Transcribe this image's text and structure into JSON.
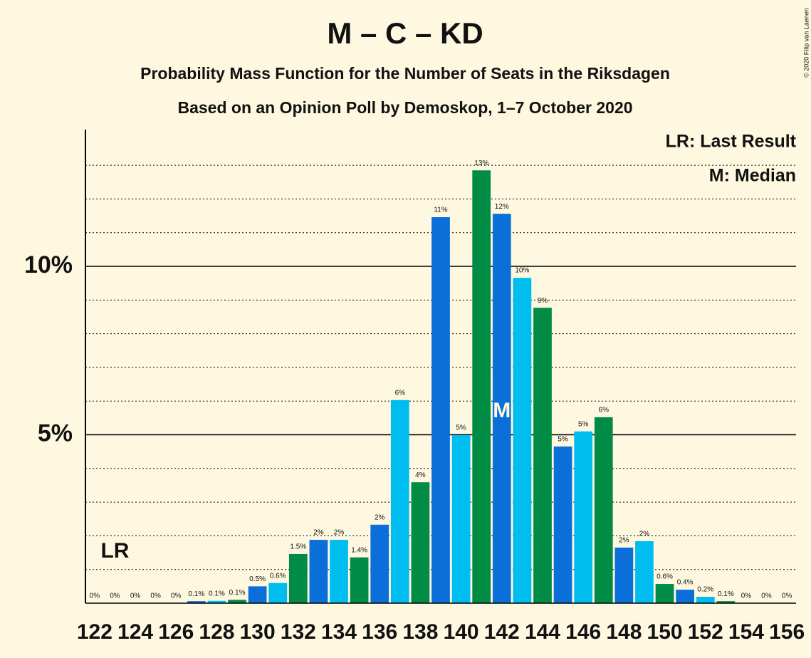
{
  "chart_data": {
    "type": "bar",
    "title": "M – C – KD",
    "subtitle": "Probability Mass Function for the Number of Seats in the Riksdagen",
    "subtitle2": "Based on an Opinion Poll by Demoskop, 1–7 October 2020",
    "copyright": "© 2020 Filip van Laenen",
    "x": [
      122,
      123,
      124,
      125,
      126,
      127,
      128,
      129,
      130,
      131,
      132,
      133,
      134,
      135,
      136,
      137,
      138,
      139,
      140,
      141,
      142,
      143,
      144,
      145,
      146,
      147,
      148,
      149,
      150,
      151,
      152,
      153,
      154,
      155,
      156
    ],
    "values": [
      0,
      0,
      0,
      0,
      0,
      0.06,
      0.07,
      0.1,
      0.5,
      0.6,
      1.46,
      1.88,
      1.88,
      1.36,
      2.33,
      6.03,
      3.59,
      11.46,
      4.99,
      12.85,
      11.56,
      9.66,
      8.77,
      4.65,
      5.1,
      5.52,
      1.65,
      1.84,
      0.57,
      0.4,
      0.19,
      0.06,
      0,
      0,
      0
    ],
    "value_labels": [
      "0%",
      "0%",
      "0%",
      "0%",
      "0%",
      "0.1%",
      "0.1%",
      "0.1%",
      "0.5%",
      "0.6%",
      "1.5%",
      "2%",
      "2%",
      "1.4%",
      "2%",
      "6%",
      "4%",
      "11%",
      "5%",
      "13%",
      "12%",
      "10%",
      "9%",
      "5%",
      "5%",
      "6%",
      "2%",
      "2%",
      "0.6%",
      "0.4%",
      "0.2%",
      "0.1%",
      "0%",
      "0%",
      "0%"
    ],
    "colors": [
      "#00bdf0",
      "#008c45",
      "#0a6fd8",
      "#00bdf0",
      "#008c45",
      "#0a6fd8",
      "#00bdf0",
      "#008c45",
      "#0a6fd8",
      "#00bdf0",
      "#008c45",
      "#0a6fd8",
      "#00bdf0",
      "#008c45",
      "#0a6fd8",
      "#00bdf0",
      "#008c45",
      "#0a6fd8",
      "#00bdf0",
      "#008c45",
      "#0a6fd8",
      "#00bdf0",
      "#008c45",
      "#0a6fd8",
      "#00bdf0",
      "#008c45",
      "#0a6fd8",
      "#00bdf0",
      "#008c45",
      "#0a6fd8",
      "#00bdf0",
      "#008c45",
      "#0a6fd8",
      "#00bdf0",
      "#008c45"
    ],
    "xlim": [
      121.55,
      156.45
    ],
    "xticks": [
      122,
      124,
      126,
      128,
      130,
      132,
      134,
      136,
      138,
      140,
      142,
      144,
      146,
      148,
      150,
      152,
      154,
      156
    ],
    "ylim": [
      0,
      14.06
    ],
    "yticks": [
      {
        "value": 5,
        "label": "5%"
      },
      {
        "value": 10,
        "label": "10%"
      }
    ],
    "minor_yticks": [
      1,
      2,
      3,
      4,
      6,
      7,
      8,
      9,
      11,
      12,
      13
    ],
    "last_result": {
      "x": 123,
      "label": "LR"
    },
    "median": {
      "x": 142,
      "label": "M"
    },
    "legend": [
      "LR: Last Result",
      "M: Median"
    ]
  }
}
